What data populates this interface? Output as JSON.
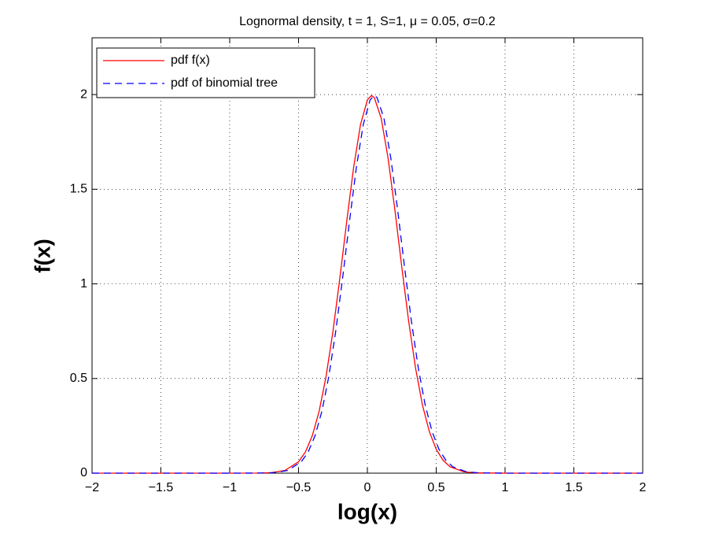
{
  "chart_data": {
    "type": "line",
    "title": "Lognormal density, t = 1, S=1, μ = 0.05, σ=0.2",
    "x_label": "log(x)",
    "y_label": "f(x)",
    "xlim": [
      -2,
      2
    ],
    "ylim": [
      0,
      2.3
    ],
    "xticks": [
      {
        "value": -2,
        "label": "−2"
      },
      {
        "value": -1.5,
        "label": "−1.5"
      },
      {
        "value": -1,
        "label": "−1"
      },
      {
        "value": -0.5,
        "label": "−0.5"
      },
      0,
      0.5,
      1,
      1.5,
      2
    ],
    "yticks": [
      0,
      0.5,
      1,
      1.5,
      2
    ],
    "grid": true,
    "legend": "upper-left",
    "series": [
      {
        "name": "pdf f(x)",
        "color": "#ff0000",
        "dash": false,
        "x": [
          -2,
          -1,
          -0.8,
          -0.7,
          -0.6,
          -0.5,
          -0.45,
          -0.4,
          -0.35,
          -0.3,
          -0.25,
          -0.2,
          -0.15,
          -0.1,
          -0.05,
          0,
          0.03,
          0.05,
          0.1,
          0.15,
          0.2,
          0.25,
          0.3,
          0.35,
          0.4,
          0.45,
          0.5,
          0.55,
          0.6,
          0.7,
          0.8,
          1,
          2
        ],
        "values": [
          0,
          0,
          0.0004,
          0.0026,
          0.014,
          0.06,
          0.112,
          0.198,
          0.328,
          0.511,
          0.749,
          1.03,
          1.33,
          1.615,
          1.841,
          1.972,
          1.995,
          1.985,
          1.876,
          1.666,
          1.39,
          1.089,
          0.802,
          0.555,
          0.36,
          0.22,
          0.126,
          0.068,
          0.034,
          0.0073,
          0.0012,
          0,
          0
        ]
      },
      {
        "name": "pdf of binomial tree",
        "color": "#0000ff",
        "dash": true,
        "x": [
          -2,
          -0.98,
          -0.78,
          -0.68,
          -0.58,
          -0.48,
          -0.43,
          -0.38,
          -0.33,
          -0.28,
          -0.23,
          -0.18,
          -0.13,
          -0.08,
          -0.03,
          0.02,
          0.05,
          0.07,
          0.12,
          0.17,
          0.22,
          0.27,
          0.32,
          0.37,
          0.42,
          0.47,
          0.52,
          0.57,
          0.62,
          0.72,
          0.82,
          1.02,
          2
        ],
        "values": [
          0,
          0,
          0.0004,
          0.0026,
          0.014,
          0.06,
          0.112,
          0.198,
          0.328,
          0.511,
          0.749,
          1.03,
          1.33,
          1.615,
          1.841,
          1.972,
          1.995,
          1.985,
          1.876,
          1.666,
          1.39,
          1.089,
          0.802,
          0.555,
          0.36,
          0.22,
          0.126,
          0.068,
          0.034,
          0.0073,
          0.0012,
          0,
          0
        ]
      }
    ]
  }
}
